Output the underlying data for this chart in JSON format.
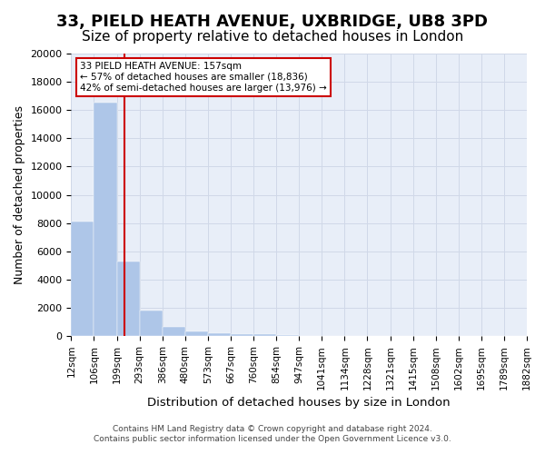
{
  "title": "33, PIELD HEATH AVENUE, UXBRIDGE, UB8 3PD",
  "subtitle": "Size of property relative to detached houses in London",
  "xlabel": "Distribution of detached houses by size in London",
  "ylabel": "Number of detached properties",
  "bar_values": [
    8100,
    16500,
    5300,
    1800,
    650,
    350,
    200,
    150,
    120,
    60,
    40,
    20,
    10,
    5,
    3,
    2,
    1,
    1,
    0,
    0
  ],
  "bin_labels": [
    "12sqm",
    "106sqm",
    "199sqm",
    "293sqm",
    "386sqm",
    "480sqm",
    "573sqm",
    "667sqm",
    "760sqm",
    "854sqm",
    "947sqm",
    "1041sqm",
    "1134sqm",
    "1228sqm",
    "1321sqm",
    "1415sqm",
    "1508sqm",
    "1602sqm",
    "1695sqm",
    "1789sqm",
    "1882sqm"
  ],
  "bar_color": "#aec6e8",
  "bar_edge_color": "#aec6e8",
  "grid_color": "#d0d8e8",
  "background_color": "#e8eef8",
  "red_line_x": 1.85,
  "annotation_text": "33 PIELD HEATH AVENUE: 157sqm\n← 57% of detached houses are smaller (18,836)\n42% of semi-detached houses are larger (13,976) →",
  "annotation_box_color": "#ffffff",
  "annotation_border_color": "#cc0000",
  "ylim": [
    0,
    20000
  ],
  "yticks": [
    0,
    2000,
    4000,
    6000,
    8000,
    10000,
    12000,
    14000,
    16000,
    18000,
    20000
  ],
  "footer_line1": "Contains HM Land Registry data © Crown copyright and database right 2024.",
  "footer_line2": "Contains public sector information licensed under the Open Government Licence v3.0.",
  "title_fontsize": 13,
  "subtitle_fontsize": 11,
  "axis_fontsize": 9,
  "tick_fontsize": 8
}
